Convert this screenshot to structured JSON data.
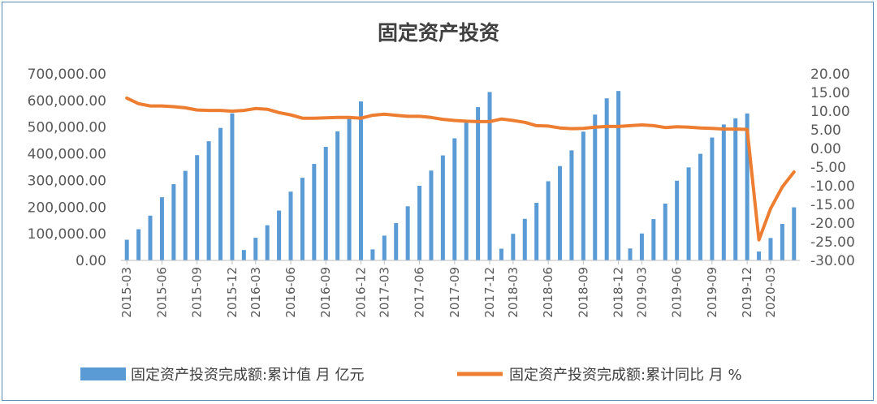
{
  "chart_data": {
    "type": "bar+line",
    "title": "固定资产投资",
    "categories": [
      "2015-03",
      "2015-04",
      "2015-05",
      "2015-06",
      "2015-07",
      "2015-08",
      "2015-09",
      "2015-10",
      "2015-11",
      "2015-12",
      "2016-02",
      "2016-03",
      "2016-04",
      "2016-05",
      "2016-06",
      "2016-07",
      "2016-08",
      "2016-09",
      "2016-10",
      "2016-11",
      "2016-12",
      "2017-02",
      "2017-03",
      "2017-04",
      "2017-05",
      "2017-06",
      "2017-07",
      "2017-08",
      "2017-09",
      "2017-10",
      "2017-11",
      "2017-12",
      "2018-02",
      "2018-03",
      "2018-04",
      "2018-05",
      "2018-06",
      "2018-07",
      "2018-08",
      "2018-09",
      "2018-10",
      "2018-11",
      "2018-12",
      "2019-02",
      "2019-03",
      "2019-04",
      "2019-05",
      "2019-06",
      "2019-07",
      "2019-08",
      "2019-09",
      "2019-10",
      "2019-11",
      "2019-12",
      "2020-02",
      "2020-03",
      "2020-04",
      "2020-05"
    ],
    "x_tick_labels": [
      "2015-03",
      "2015-06",
      "2015-09",
      "2015-12",
      "2016-03",
      "2016-06",
      "2016-09",
      "2016-12",
      "2017-03",
      "2017-06",
      "2017-09",
      "2017-12",
      "2018-03",
      "2018-06",
      "2018-09",
      "2018-12",
      "2019-03",
      "2019-06",
      "2019-09",
      "2019-12",
      "2020-03"
    ],
    "y_left_ticks": [
      "0.00",
      "100,000.00",
      "200,000.00",
      "300,000.00",
      "400,000.00",
      "500,000.00",
      "600,000.00",
      "700,000.00"
    ],
    "y_right_ticks": [
      "-30.00",
      "-25.00",
      "-20.00",
      "-15.00",
      "-10.00",
      "-5.00",
      "0.00",
      "5.00",
      "10.00",
      "15.00",
      "20.00"
    ],
    "ylim_left": [
      0,
      700000
    ],
    "ylim_right": [
      -30,
      20
    ],
    "series": [
      {
        "name": "固定资产投资完成额:累计值 月 亿元",
        "type": "bar",
        "axis": "left",
        "color": "#5b9bd5",
        "values": [
          77511,
          117000,
          168000,
          237000,
          286000,
          336000,
          395000,
          447000,
          497000,
          551590,
          39008,
          85000,
          132000,
          187000,
          258000,
          310000,
          362000,
          426000,
          484000,
          532000,
          596501,
          41378,
          93000,
          140000,
          203000,
          280000,
          337000,
          394000,
          458000,
          517000,
          575000,
          631684,
          44000,
          100000,
          156000,
          216000,
          297000,
          354000,
          413000,
          483000,
          547000,
          608000,
          635636,
          44849,
          101000,
          155000,
          213000,
          299000,
          349000,
          400000,
          461000,
          510000,
          533000,
          551478,
          33323,
          84145,
          136824,
          199194
        ]
      },
      {
        "name": "固定资产投资完成额:累计同比 月 %",
        "type": "line",
        "axis": "right",
        "color": "#ed7d31",
        "values": [
          13.5,
          12.0,
          11.4,
          11.4,
          11.2,
          10.9,
          10.3,
          10.2,
          10.2,
          10.0,
          10.2,
          10.7,
          10.5,
          9.6,
          9.0,
          8.1,
          8.1,
          8.2,
          8.3,
          8.3,
          8.1,
          8.9,
          9.2,
          8.9,
          8.6,
          8.6,
          8.3,
          7.8,
          7.5,
          7.3,
          7.2,
          7.2,
          7.9,
          7.5,
          7.0,
          6.1,
          6.0,
          5.5,
          5.3,
          5.4,
          5.7,
          5.9,
          5.9,
          6.1,
          6.3,
          6.1,
          5.6,
          5.8,
          5.7,
          5.5,
          5.4,
          5.2,
          5.2,
          5.1,
          -24.5,
          -16.1,
          -10.3,
          -6.3
        ]
      }
    ]
  }
}
